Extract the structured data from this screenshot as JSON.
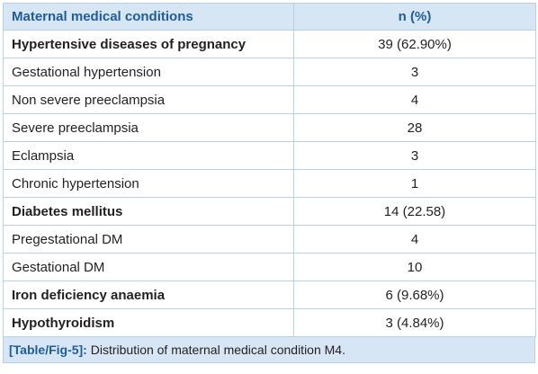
{
  "table": {
    "headers": [
      "Maternal medical conditions",
      "n (%)"
    ],
    "rows": [
      {
        "label": "Hypertensive diseases of pregnancy",
        "value": "39 (62.90%)",
        "bold": true
      },
      {
        "label": "Gestational hypertension",
        "value": "3",
        "bold": false
      },
      {
        "label": "Non severe preeclampsia",
        "value": "4",
        "bold": false
      },
      {
        "label": "Severe preeclampsia",
        "value": "28",
        "bold": false
      },
      {
        "label": "Eclampsia",
        "value": "3",
        "bold": false
      },
      {
        "label": "Chronic hypertension",
        "value": "1",
        "bold": false
      },
      {
        "label": "Diabetes mellitus",
        "value": "14 (22.58)",
        "bold": true
      },
      {
        "label": "Pregestational DM",
        "value": "4",
        "bold": false
      },
      {
        "label": "Gestational DM",
        "value": "10",
        "bold": false
      },
      {
        "label": "Iron deficiency anaemia",
        "value": "6 (9.68%)",
        "bold": true
      },
      {
        "label": "Hypothyroidism",
        "value": "3 (4.84%)",
        "bold": true
      }
    ]
  },
  "caption": {
    "tag": "[Table/Fig-5]:",
    "text": " Distribution of maternal medical condition M4."
  },
  "colors": {
    "header_bg": "#d7e6f5",
    "header_text": "#1f5c99",
    "border": "#b9cfe4"
  }
}
